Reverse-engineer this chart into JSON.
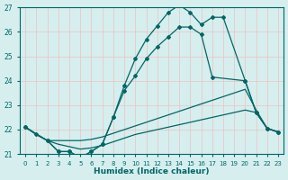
{
  "xlabel": "Humidex (Indice chaleur)",
  "xlim": [
    -0.5,
    23.5
  ],
  "ylim": [
    21.0,
    27.0
  ],
  "yticks": [
    21,
    22,
    23,
    24,
    25,
    26,
    27
  ],
  "xticks": [
    0,
    1,
    2,
    3,
    4,
    5,
    6,
    7,
    8,
    9,
    10,
    11,
    12,
    13,
    14,
    15,
    16,
    17,
    18,
    19,
    20,
    21,
    22,
    23
  ],
  "bg_color": "#d6eeee",
  "grid_color": "#b8d8d8",
  "line_color": "#006666",
  "curve1_x": [
    0,
    1,
    2,
    3,
    4,
    5,
    6,
    7,
    8,
    9,
    10,
    11,
    12,
    13,
    14,
    15,
    16,
    17,
    18,
    20,
    21,
    22,
    23
  ],
  "curve1_y": [
    22.1,
    21.8,
    21.55,
    21.1,
    21.1,
    20.85,
    21.1,
    21.4,
    22.5,
    23.8,
    24.9,
    25.7,
    26.25,
    26.8,
    27.1,
    26.8,
    26.3,
    26.6,
    26.6,
    24.0,
    22.7,
    22.05,
    21.9
  ],
  "curve2_x": [
    0,
    2,
    3,
    4,
    5,
    6,
    7,
    8,
    9,
    10,
    11,
    12,
    13,
    14,
    15,
    16,
    17,
    20,
    21,
    22,
    23
  ],
  "curve2_y": [
    22.1,
    21.55,
    21.1,
    21.1,
    20.85,
    21.1,
    21.4,
    22.5,
    23.6,
    24.2,
    24.9,
    25.4,
    25.8,
    26.2,
    26.2,
    25.9,
    24.15,
    24.0,
    22.7,
    22.05,
    21.9
  ],
  "curve3_x": [
    0,
    1,
    2,
    3,
    4,
    5,
    6,
    7,
    8,
    9,
    10,
    11,
    12,
    13,
    14,
    15,
    16,
    17,
    18,
    19,
    20,
    21,
    22,
    23
  ],
  "curve3_y": [
    22.1,
    21.8,
    21.55,
    21.55,
    21.55,
    21.55,
    21.6,
    21.7,
    21.85,
    22.0,
    22.15,
    22.3,
    22.45,
    22.6,
    22.75,
    22.9,
    23.05,
    23.2,
    23.35,
    23.5,
    23.65,
    22.8,
    22.05,
    21.9
  ],
  "curve4_x": [
    0,
    1,
    2,
    3,
    4,
    5,
    6,
    7,
    8,
    9,
    10,
    11,
    12,
    13,
    14,
    15,
    16,
    17,
    18,
    19,
    20,
    21,
    22,
    23
  ],
  "curve4_y": [
    22.1,
    21.8,
    21.55,
    21.4,
    21.3,
    21.2,
    21.25,
    21.35,
    21.5,
    21.65,
    21.8,
    21.9,
    22.0,
    22.1,
    22.2,
    22.3,
    22.4,
    22.5,
    22.6,
    22.7,
    22.8,
    22.7,
    22.05,
    21.9
  ]
}
